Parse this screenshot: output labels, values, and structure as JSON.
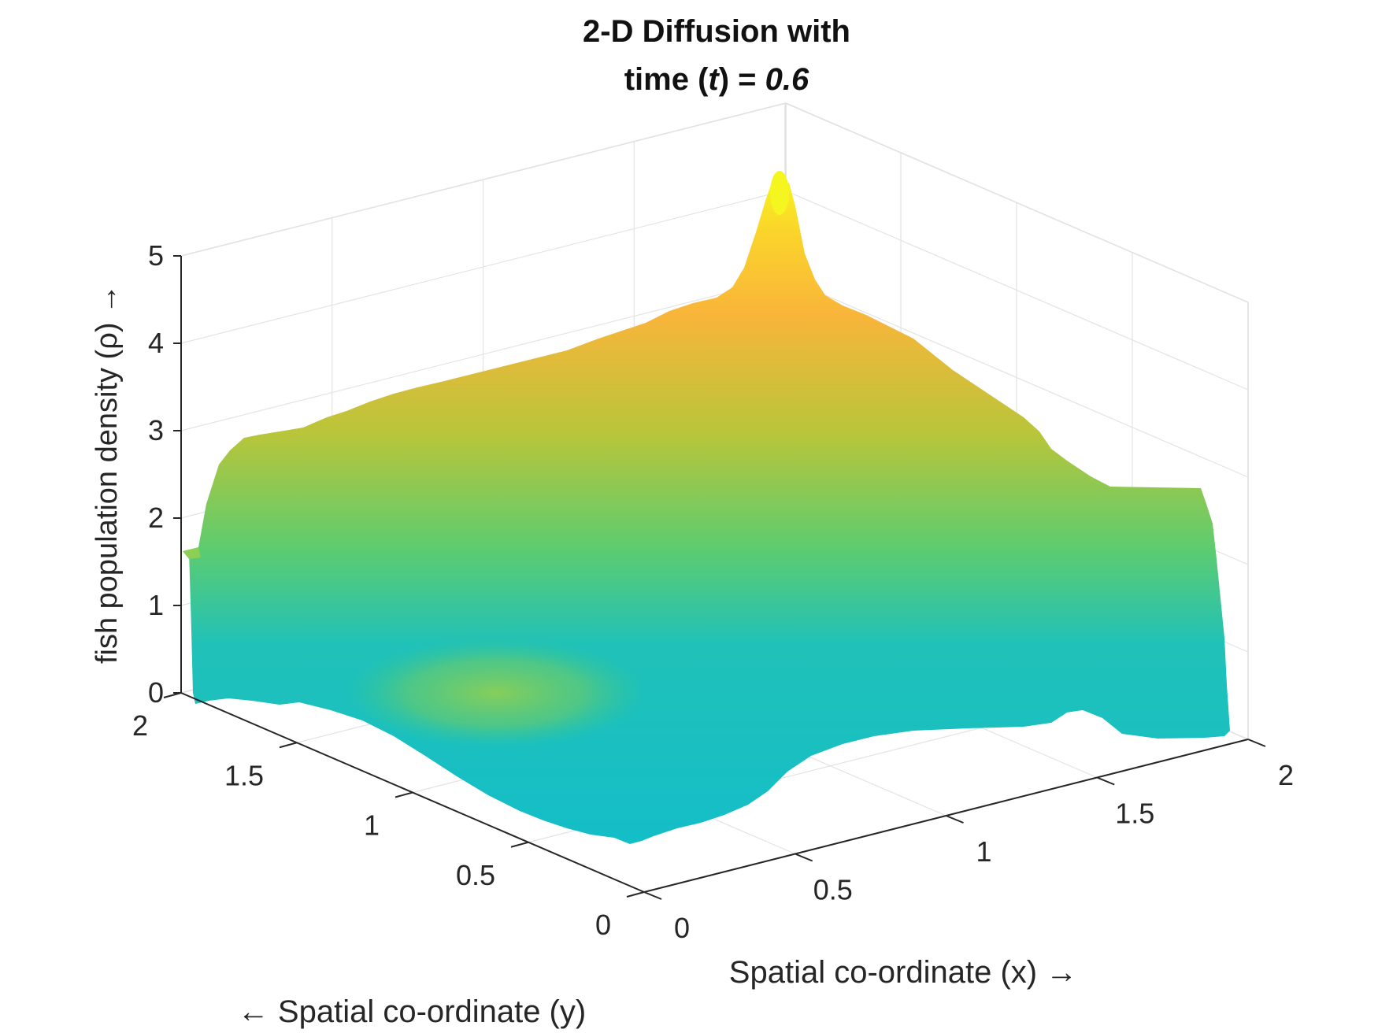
{
  "chart_data": {
    "type": "surface",
    "title_line1": "2-D Diffusion with",
    "title_line2_prefix": "time (",
    "title_line2_var": "t",
    "title_line2_mid": ") = ",
    "title_line2_value": "0.6",
    "xlabel": "Spatial co-ordinate (x) →",
    "ylabel": "← Spatial co-ordinate (y)",
    "zlabel": "fish population density (ρ) →",
    "xlim": [
      0,
      2
    ],
    "ylim": [
      0,
      2
    ],
    "zlim": [
      0,
      5
    ],
    "x_ticks": [
      "0",
      "0.5",
      "1",
      "1.5",
      "2"
    ],
    "y_ticks": [
      "0",
      "0.5",
      "1",
      "1.5",
      "2"
    ],
    "z_ticks": [
      "0",
      "1",
      "2",
      "3",
      "4",
      "5"
    ],
    "grid": true,
    "colormap": "parula",
    "peak": {
      "x": 0,
      "y": 2,
      "rho": 5.0
    },
    "boundary_x0_rho": [
      1.5,
      1.6,
      2.9,
      3.1,
      3.4,
      3.8,
      4.1,
      4.4,
      5.0
    ],
    "boundary_y2_rho": [
      5.0,
      4.4,
      4.0,
      3.7,
      3.3,
      2.9,
      2.6,
      2.4,
      2.2
    ],
    "colors": {
      "low": "#14bec8",
      "mid": "#5fcc6e",
      "high": "#f9b53a",
      "top": "#f5f51f"
    }
  }
}
